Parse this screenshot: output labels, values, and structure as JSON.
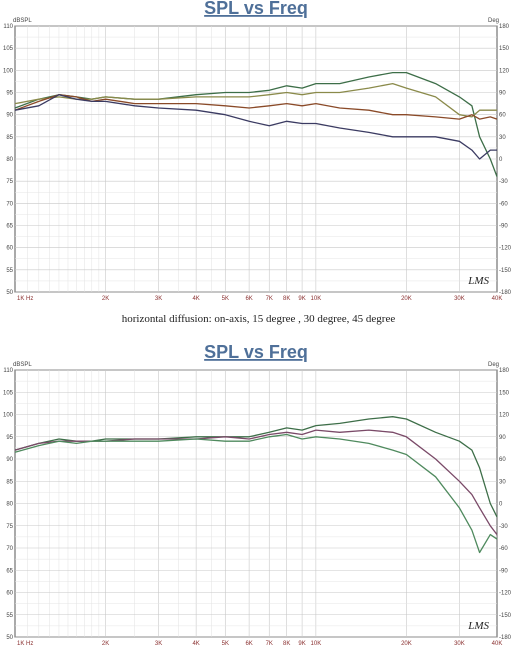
{
  "caption": "horizontal diffusion: on-axis, 15 degree , 30 degree, 45 degree",
  "chart_data": [
    {
      "type": "line",
      "title": "SPL vs Freq",
      "ylabel_left": "dBSPL",
      "ylabel_right": "Deg",
      "logo": "LMS",
      "x_scale": "log",
      "xlim": [
        1000,
        40000
      ],
      "ylim": [
        50,
        110
      ],
      "ylim_right": [
        -180,
        180
      ],
      "grid": true,
      "x_ticks": [
        {
          "v": 1000,
          "label": "1K Hz"
        },
        {
          "v": 2000,
          "label": "2K"
        },
        {
          "v": 3000,
          "label": "3K"
        },
        {
          "v": 4000,
          "label": "4K"
        },
        {
          "v": 5000,
          "label": "5K"
        },
        {
          "v": 6000,
          "label": "6K"
        },
        {
          "v": 7000,
          "label": "7K"
        },
        {
          "v": 8000,
          "label": "8K"
        },
        {
          "v": 9000,
          "label": "9K"
        },
        {
          "v": 10000,
          "label": "10K"
        },
        {
          "v": 20000,
          "label": "20K"
        },
        {
          "v": 30000,
          "label": "30K"
        },
        {
          "v": 40000,
          "label": "40K"
        }
      ],
      "y_ticks": [
        50,
        55,
        60,
        65,
        70,
        75,
        80,
        85,
        90,
        95,
        100,
        105,
        110
      ],
      "y_ticks_right": [
        -180,
        -150,
        -120,
        -90,
        -60,
        -30,
        0,
        30,
        60,
        90,
        120,
        150,
        180
      ],
      "series": [
        {
          "color": "#3d6e48",
          "x": [
            1000,
            1200,
            1400,
            1600,
            1800,
            2000,
            2500,
            3000,
            4000,
            5000,
            6000,
            7000,
            8000,
            9000,
            10000,
            12000,
            15000,
            18000,
            20000,
            25000,
            30000,
            33000,
            35000,
            38000,
            40000
          ],
          "y": [
            91.5,
            93.5,
            94.5,
            94,
            93.5,
            94,
            93.5,
            93.5,
            94.5,
            95,
            95,
            95.5,
            96.5,
            96,
            97,
            97,
            98.5,
            99.5,
            99.5,
            97,
            94,
            92,
            85,
            80,
            76
          ]
        },
        {
          "color": "#8a8a4a",
          "x": [
            1000,
            1200,
            1400,
            1600,
            1800,
            2000,
            2500,
            3000,
            4000,
            5000,
            6000,
            7000,
            8000,
            9000,
            10000,
            12000,
            15000,
            18000,
            20000,
            25000,
            30000,
            33000,
            35000,
            38000,
            40000
          ],
          "y": [
            92.5,
            93.5,
            94,
            93.5,
            93.5,
            94,
            93.5,
            93.5,
            94,
            94,
            94,
            94.5,
            95,
            94.5,
            95,
            95,
            96,
            97,
            96,
            94,
            90,
            89.5,
            91,
            91,
            91
          ]
        },
        {
          "color": "#8a4a28",
          "x": [
            1000,
            1200,
            1400,
            1600,
            1800,
            2000,
            2500,
            3000,
            4000,
            5000,
            6000,
            7000,
            8000,
            9000,
            10000,
            12000,
            15000,
            18000,
            20000,
            25000,
            30000,
            33000,
            35000,
            38000,
            40000
          ],
          "y": [
            91,
            93,
            94.5,
            94,
            93,
            93.5,
            92.5,
            92.5,
            92.5,
            92,
            91.5,
            92,
            92.5,
            92,
            92.5,
            91.5,
            91,
            90,
            90,
            89.5,
            89,
            90,
            89,
            89.5,
            89
          ]
        },
        {
          "color": "#3b3b62",
          "x": [
            1000,
            1200,
            1400,
            1600,
            1800,
            2000,
            2500,
            3000,
            4000,
            5000,
            6000,
            7000,
            8000,
            9000,
            10000,
            12000,
            15000,
            18000,
            20000,
            25000,
            30000,
            33000,
            35000,
            38000,
            40000
          ],
          "y": [
            91,
            92,
            94.5,
            93.5,
            93,
            93,
            92,
            91.5,
            91,
            90,
            88.5,
            87.5,
            88.5,
            88,
            88,
            87,
            86,
            85,
            85,
            85,
            84,
            82,
            80,
            82,
            82
          ]
        }
      ]
    },
    {
      "type": "line",
      "title": "SPL vs Freq",
      "ylabel_left": "dBSPL",
      "ylabel_right": "Deg",
      "logo": "LMS",
      "x_scale": "log",
      "xlim": [
        1000,
        40000
      ],
      "ylim": [
        50,
        110
      ],
      "ylim_right": [
        -180,
        180
      ],
      "grid": true,
      "x_ticks": [
        {
          "v": 1000,
          "label": "1K Hz"
        },
        {
          "v": 2000,
          "label": "2K"
        },
        {
          "v": 3000,
          "label": "3K"
        },
        {
          "v": 4000,
          "label": "4K"
        },
        {
          "v": 5000,
          "label": "5K"
        },
        {
          "v": 6000,
          "label": "6K"
        },
        {
          "v": 7000,
          "label": "7K"
        },
        {
          "v": 8000,
          "label": "8K"
        },
        {
          "v": 9000,
          "label": "9K"
        },
        {
          "v": 10000,
          "label": "10K"
        },
        {
          "v": 20000,
          "label": "20K"
        },
        {
          "v": 30000,
          "label": "30K"
        },
        {
          "v": 40000,
          "label": "40K"
        }
      ],
      "y_ticks": [
        50,
        55,
        60,
        65,
        70,
        75,
        80,
        85,
        90,
        95,
        100,
        105,
        110
      ],
      "y_ticks_right": [
        -180,
        -150,
        -120,
        -90,
        -60,
        -30,
        0,
        30,
        60,
        90,
        120,
        150,
        180
      ],
      "series": [
        {
          "color": "#3d6e48",
          "x": [
            1000,
            1200,
            1400,
            1600,
            1800,
            2000,
            2500,
            3000,
            4000,
            5000,
            6000,
            7000,
            8000,
            9000,
            10000,
            12000,
            15000,
            18000,
            20000,
            25000,
            30000,
            33000,
            35000,
            38000,
            40000
          ],
          "y": [
            92,
            93.5,
            94.5,
            94,
            94,
            94.5,
            94.5,
            94.5,
            95,
            95,
            95,
            96,
            97,
            96.5,
            97.5,
            98,
            99,
            99.5,
            99,
            96,
            94,
            92,
            88,
            80,
            77
          ]
        },
        {
          "color": "#7a4a68",
          "x": [
            1000,
            1200,
            1400,
            1600,
            1800,
            2000,
            2500,
            3000,
            4000,
            5000,
            6000,
            7000,
            8000,
            9000,
            10000,
            12000,
            15000,
            18000,
            20000,
            25000,
            30000,
            33000,
            35000,
            38000,
            40000
          ],
          "y": [
            92,
            93.5,
            94,
            94,
            94,
            94,
            94.5,
            94.5,
            94.5,
            95,
            94.5,
            95.5,
            96,
            95.5,
            96.5,
            96,
            96.5,
            96,
            95,
            90,
            85,
            82,
            79,
            75,
            73
          ]
        },
        {
          "color": "#4f8a5e",
          "x": [
            1000,
            1200,
            1400,
            1600,
            1800,
            2000,
            2500,
            3000,
            4000,
            5000,
            6000,
            7000,
            8000,
            9000,
            10000,
            12000,
            15000,
            18000,
            20000,
            25000,
            30000,
            33000,
            35000,
            38000,
            40000
          ],
          "y": [
            91.5,
            93,
            94,
            93.5,
            94,
            94,
            94,
            94,
            94.5,
            94,
            94,
            95,
            95.5,
            94.5,
            95,
            94.5,
            93.5,
            92,
            91,
            86,
            79,
            74,
            69,
            73,
            72
          ]
        }
      ]
    }
  ]
}
